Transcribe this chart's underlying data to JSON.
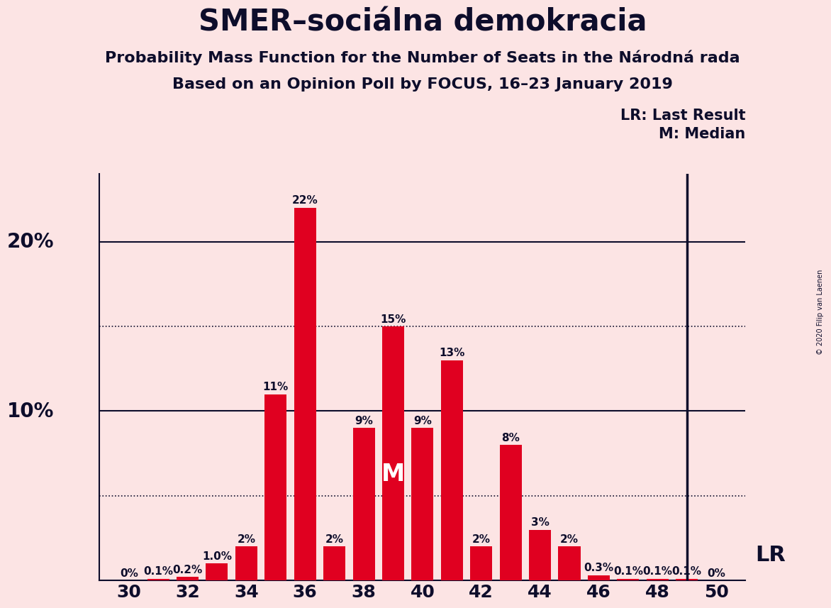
{
  "title": "SMER–sociálna demokracia",
  "subtitle1": "Probability Mass Function for the Number of Seats in the Národná rada",
  "subtitle2": "Based on an Opinion Poll by FOCUS, 16–23 January 2019",
  "copyright": "© 2020 Filip van Laenen",
  "seats": [
    30,
    31,
    32,
    33,
    34,
    35,
    36,
    37,
    38,
    39,
    40,
    41,
    42,
    43,
    44,
    45,
    46,
    47,
    48,
    49,
    50
  ],
  "probabilities": [
    0.0,
    0.1,
    0.2,
    1.0,
    2.0,
    11.0,
    22.0,
    2.0,
    9.0,
    15.0,
    9.0,
    13.0,
    2.0,
    8.0,
    3.0,
    2.0,
    0.3,
    0.1,
    0.1,
    0.1,
    0.0
  ],
  "labels": [
    "0%",
    "0.1%",
    "0.2%",
    "1.0%",
    "2%",
    "11%",
    "22%",
    "2%",
    "9%",
    "15%",
    "9%",
    "13%",
    "2%",
    "8%",
    "3%",
    "2%",
    "0.3%",
    "0.1%",
    "0.1%",
    "0.1%",
    "0%"
  ],
  "bar_color": "#e00020",
  "background_color": "#fce4e4",
  "median_seat": 39,
  "lr_seat": 49,
  "xlim": [
    29.0,
    51.0
  ],
  "ylim": [
    0,
    24
  ],
  "solid_hlines": [
    10.0,
    20.0
  ],
  "dotted_hlines": [
    5.0,
    15.0
  ],
  "legend_lr": "LR: Last Result",
  "legend_m": "M: Median",
  "title_fontsize": 30,
  "subtitle_fontsize": 16,
  "label_fontsize": 11,
  "ytick_positions": [
    10,
    20
  ],
  "ytick_labels": [
    "10%",
    "20%"
  ],
  "text_color": "#0d0d2b"
}
